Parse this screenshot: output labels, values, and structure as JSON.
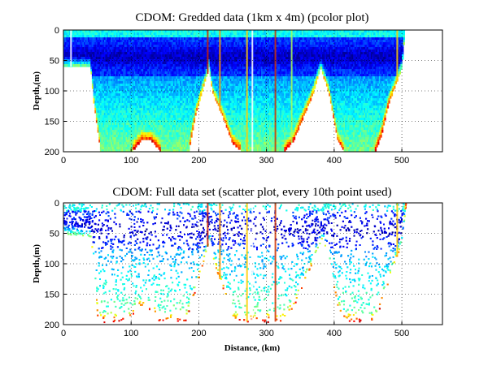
{
  "chart_data": [
    {
      "type": "heatmap",
      "title": "CDOM: Gredded data (1km x 4m) (pcolor plot)",
      "xlabel": "",
      "ylabel": "Depth,(m)",
      "xlim": [
        0,
        560
      ],
      "ylim": [
        200,
        0
      ],
      "x_ticks": [
        "0",
        "100",
        "200",
        "300",
        "400",
        "500"
      ],
      "y_ticks": [
        "0",
        "50",
        "100",
        "150",
        "200"
      ],
      "grid": "dotted",
      "colormap": "jet",
      "profile_bottom": [
        [
          0,
          60
        ],
        [
          40,
          60
        ],
        [
          45,
          120
        ],
        [
          55,
          200
        ],
        [
          100,
          200
        ],
        [
          115,
          180
        ],
        [
          130,
          180
        ],
        [
          145,
          200
        ],
        [
          185,
          200
        ],
        [
          195,
          140
        ],
        [
          205,
          100
        ],
        [
          215,
          60
        ],
        [
          220,
          100
        ],
        [
          235,
          140
        ],
        [
          250,
          185
        ],
        [
          265,
          200
        ],
        [
          325,
          200
        ],
        [
          340,
          180
        ],
        [
          355,
          140
        ],
        [
          370,
          100
        ],
        [
          380,
          60
        ],
        [
          392,
          100
        ],
        [
          405,
          180
        ],
        [
          415,
          200
        ],
        [
          460,
          200
        ],
        [
          470,
          170
        ],
        [
          480,
          120
        ],
        [
          490,
          90
        ],
        [
          500,
          60
        ],
        [
          505,
          0
        ]
      ],
      "vertical_streaks": [
        {
          "x": 10,
          "color": "#ffffff"
        },
        {
          "x": 212,
          "color": "#cc2200"
        },
        {
          "x": 230,
          "color": "#ff9900"
        },
        {
          "x": 270,
          "color": "#ffcc00"
        },
        {
          "x": 278,
          "color": "#ffffff"
        },
        {
          "x": 312,
          "color": "#cc3300"
        },
        {
          "x": 336,
          "color": "#aaff55"
        },
        {
          "x": 492,
          "color": "#ffcc00"
        }
      ]
    },
    {
      "type": "scatter",
      "title": "CDOM: Full data set (scatter plot, every 10th point used)",
      "xlabel": "Distance, (km)",
      "ylabel": "Depth,(m)",
      "xlim": [
        0,
        560
      ],
      "ylim": [
        200,
        0
      ],
      "x_ticks": [
        "0",
        "100",
        "200",
        "300",
        "400",
        "500"
      ],
      "y_ticks": [
        "0",
        "50",
        "100",
        "150",
        "200"
      ],
      "grid": "dotted",
      "colormap": "jet",
      "profile_bottom": [
        [
          0,
          50
        ],
        [
          40,
          55
        ],
        [
          45,
          120
        ],
        [
          50,
          195
        ],
        [
          95,
          195
        ],
        [
          110,
          170
        ],
        [
          130,
          175
        ],
        [
          140,
          195
        ],
        [
          180,
          195
        ],
        [
          195,
          140
        ],
        [
          205,
          100
        ],
        [
          215,
          60
        ],
        [
          222,
          100
        ],
        [
          238,
          150
        ],
        [
          250,
          195
        ],
        [
          325,
          195
        ],
        [
          340,
          170
        ],
        [
          355,
          130
        ],
        [
          370,
          90
        ],
        [
          382,
          55
        ],
        [
          392,
          100
        ],
        [
          405,
          175
        ],
        [
          415,
          195
        ],
        [
          460,
          195
        ],
        [
          470,
          160
        ],
        [
          485,
          110
        ],
        [
          500,
          60
        ],
        [
          505,
          0
        ]
      ],
      "vertical_streaks": [
        {
          "x": 212,
          "color": "#cc2200"
        },
        {
          "x": 230,
          "color": "#ff9900"
        },
        {
          "x": 270,
          "color": "#ffcc00"
        },
        {
          "x": 278,
          "color": "#ffffff"
        },
        {
          "x": 312,
          "color": "#cc3300"
        },
        {
          "x": 492,
          "color": "#ffcc00"
        }
      ]
    }
  ]
}
